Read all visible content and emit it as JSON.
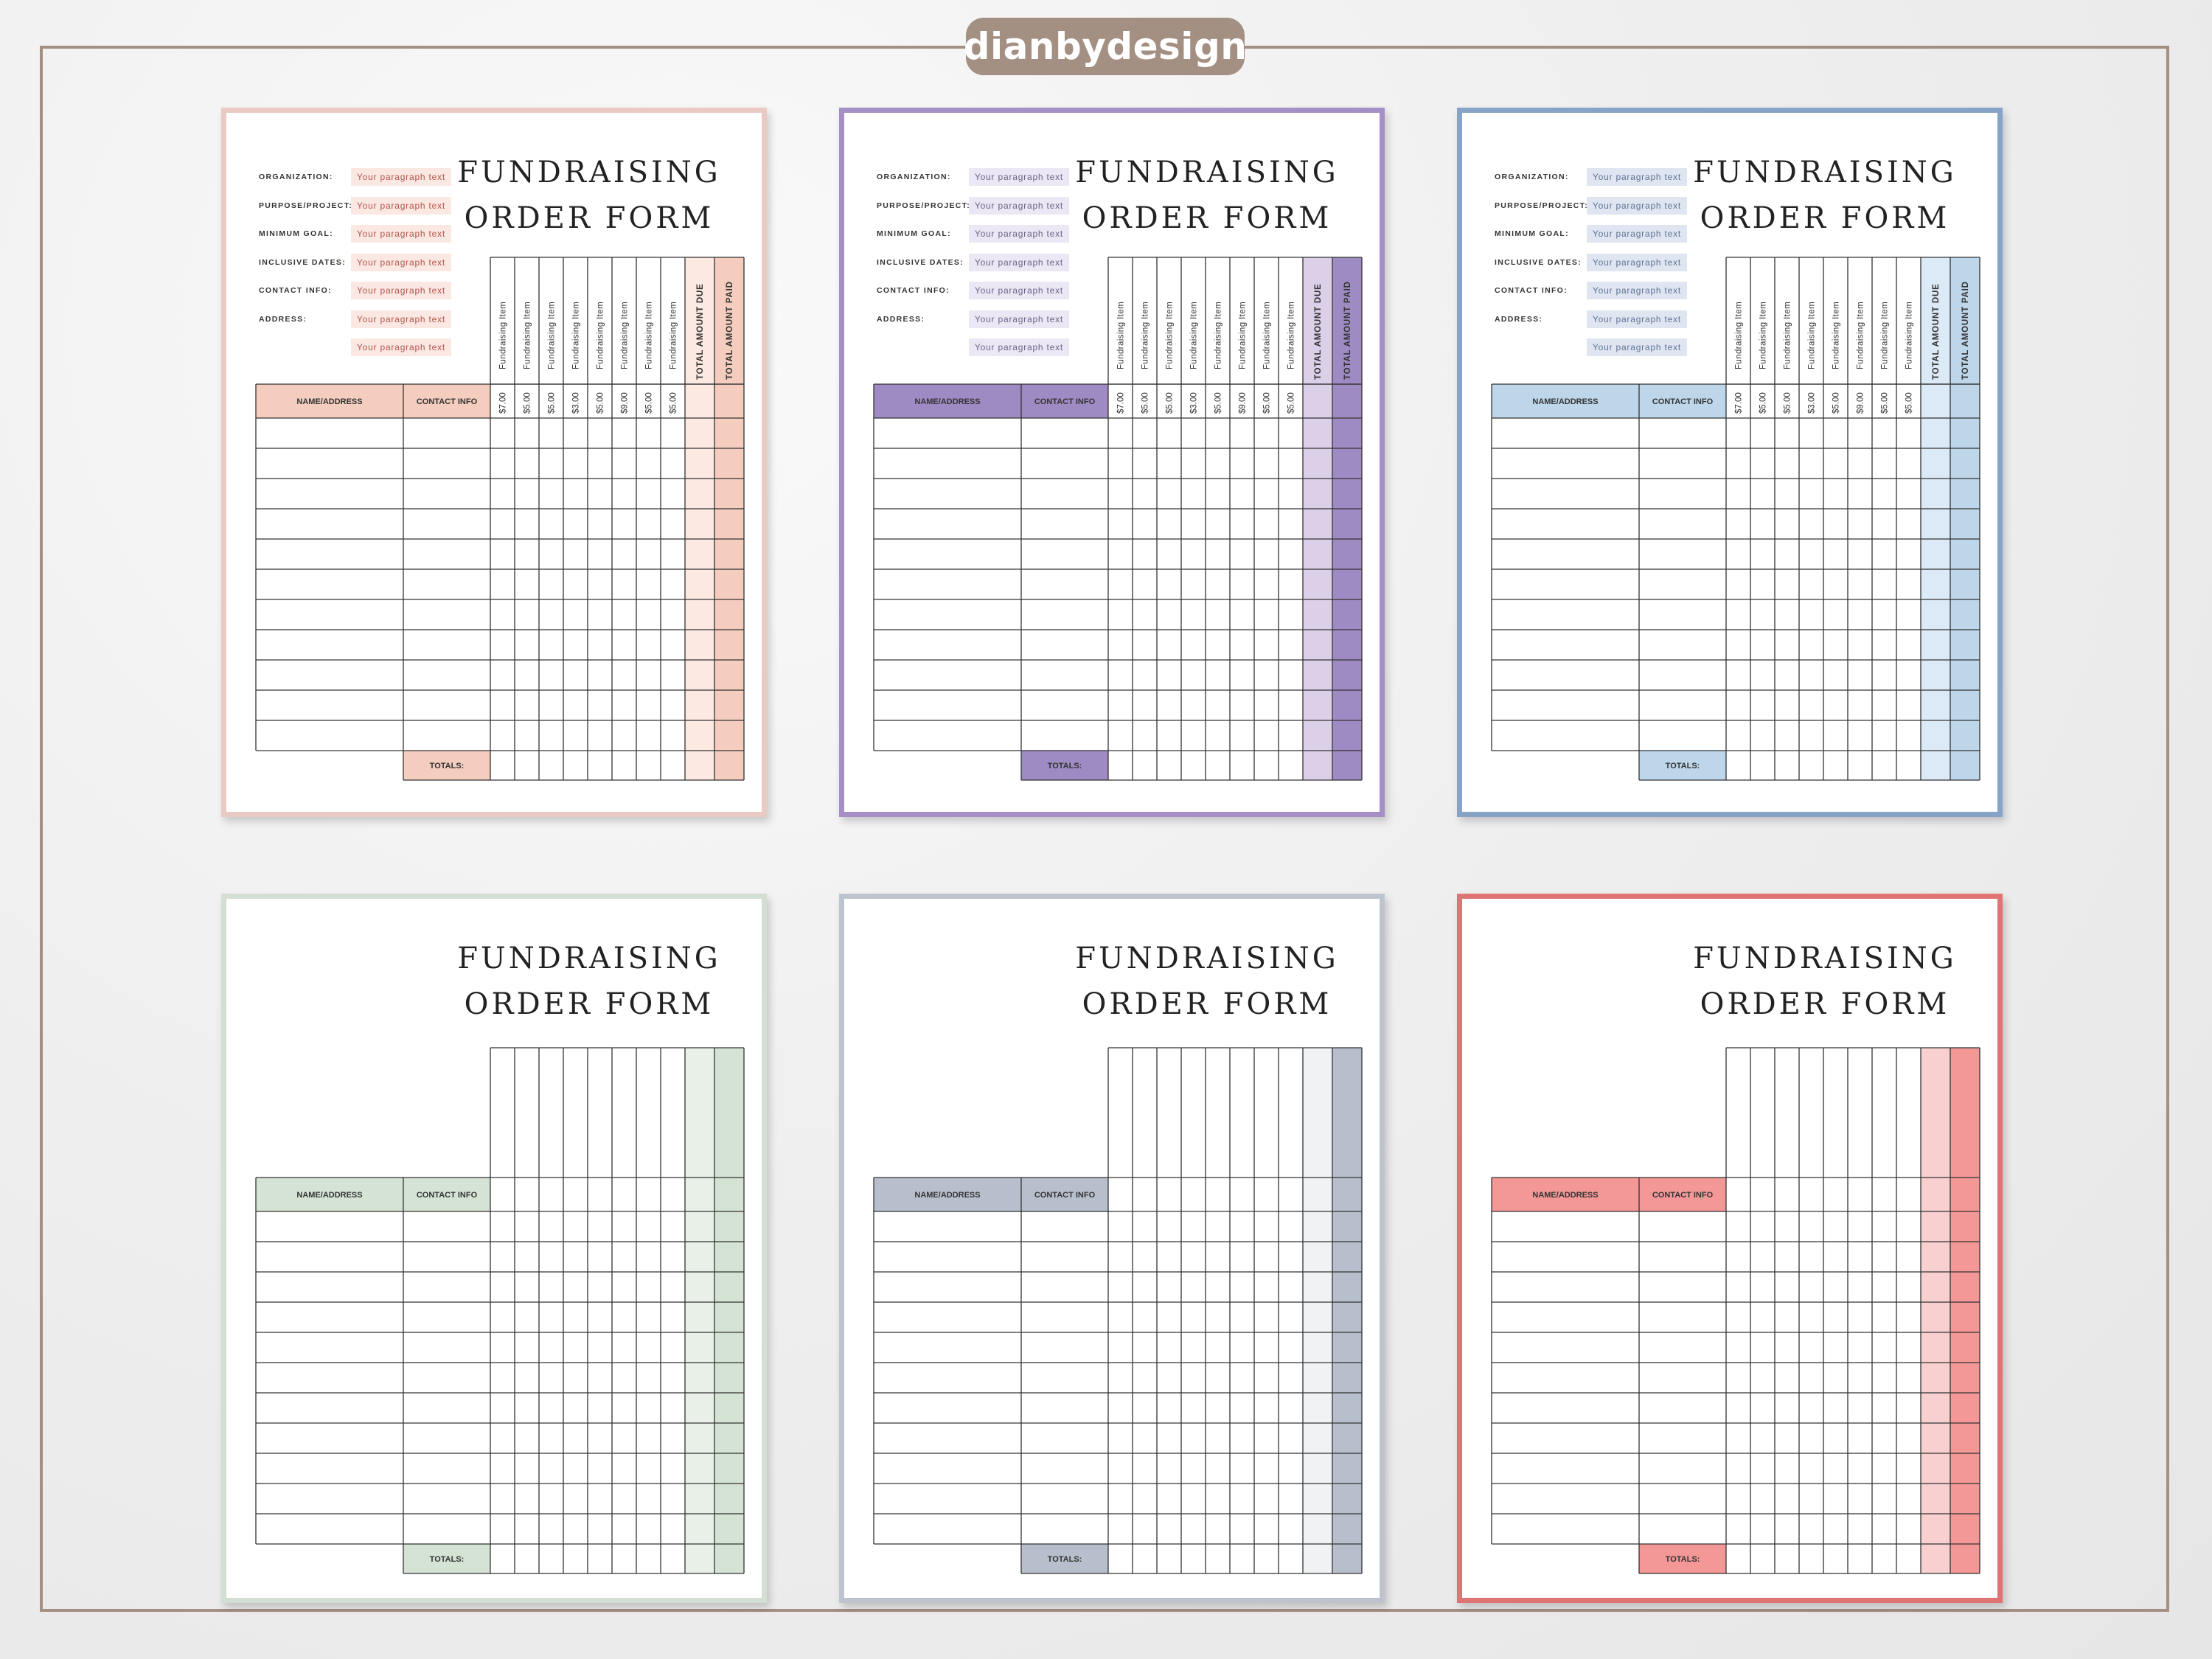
{
  "brand": "dianbydesign",
  "form": {
    "title_line1": "FUNDRAISING",
    "title_line2": "ORDER FORM",
    "info_labels": [
      "ORGANIZATION:",
      "PURPOSE/PROJECT:",
      "MINIMUM GOAL:",
      "INCLUSIVE DATES:",
      "CONTACT INFO:",
      "ADDRESS:",
      ""
    ],
    "info_placeholder": "Your paragraph text",
    "col_name": "NAME/ADDRESS",
    "col_contact": "CONTACT INFO",
    "totals_label": "TOTALS:",
    "item_header": "Fundraising Item",
    "item_prices": [
      "$7.00",
      "$5.00",
      "$5.00",
      "$3.00",
      "$5.00",
      "$9.00",
      "$5.00",
      "$5.00"
    ],
    "total_due_header": "TOTAL AMOUNT DUE",
    "total_paid_header": "TOTAL AMOUNT PAID"
  },
  "pages": [
    {
      "variant": "detailed",
      "border": "#e9cbc3",
      "accent": "#f4cdbf",
      "accent_light": "#fbe9e2",
      "info_bg": "#fbe8e3",
      "info_text": "#b0554a"
    },
    {
      "variant": "detailed",
      "border": "#a68ec6",
      "accent": "#9f8bc3",
      "accent_light": "#dccfe8",
      "info_bg": "#ebe7f4",
      "info_text": "#6b6388"
    },
    {
      "variant": "detailed",
      "border": "#87a3c7",
      "accent": "#bdd6ea",
      "accent_light": "#dbeaf6",
      "info_bg": "#dfe6f2",
      "info_text": "#5f7192"
    },
    {
      "variant": "blank",
      "border": "#d4dfd4",
      "accent": "#d5e3d5",
      "accent_light": "#e8f0e8"
    },
    {
      "variant": "blank",
      "border": "#bdc4d0",
      "accent": "#b7bfcc",
      "accent_light": "#f1f2f4"
    },
    {
      "variant": "blank",
      "border": "#e07474",
      "accent": "#f39797",
      "accent_light": "#f8d0d0"
    }
  ]
}
